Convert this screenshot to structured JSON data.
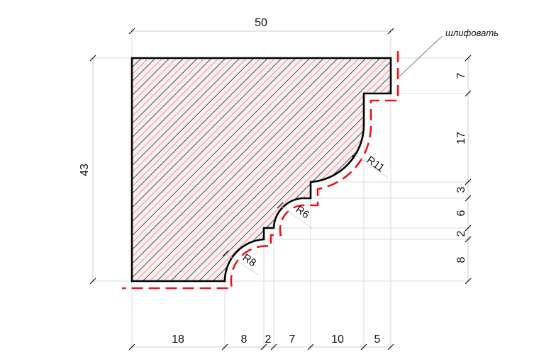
{
  "drawing": {
    "overall_width_label": "50",
    "overall_height_label": "43",
    "note_label": "шлифовать",
    "bottom_dimensions": [
      "18",
      "8",
      "2",
      "7",
      "10",
      "5"
    ],
    "right_dimensions": [
      "7",
      "17",
      "3",
      "6",
      "2",
      "8"
    ],
    "radius_labels": {
      "r11": "R11",
      "r6": "R6",
      "r8": "R8"
    },
    "colors": {
      "profile_outline": "#000000",
      "sanding_line": "#e8141b",
      "hatch_black": "#3a3a3a",
      "hatch_red": "#e87070",
      "section_fill": "#f7efef"
    }
  }
}
